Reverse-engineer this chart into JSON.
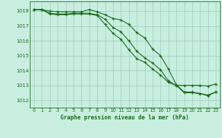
{
  "x": [
    0,
    1,
    2,
    3,
    4,
    5,
    6,
    7,
    8,
    9,
    10,
    11,
    12,
    13,
    14,
    15,
    16,
    17,
    18,
    19,
    20,
    21,
    22,
    23
  ],
  "line1": [
    1018.1,
    1018.1,
    1018.0,
    1017.95,
    1017.95,
    1017.95,
    1017.95,
    1018.1,
    1017.95,
    1017.75,
    1017.5,
    1017.4,
    1017.1,
    1016.55,
    1016.2,
    1015.45,
    1015.0,
    1014.1,
    1013.05,
    1012.55,
    1012.55,
    1012.45,
    1012.35,
    1012.55
  ],
  "line2": [
    1018.1,
    1018.1,
    1017.85,
    1017.8,
    1017.8,
    1017.85,
    1017.85,
    1017.85,
    1017.75,
    1017.45,
    1016.9,
    1016.6,
    1016.0,
    1015.3,
    1014.85,
    1014.5,
    1014.05,
    1013.3,
    1013.0,
    1012.5,
    1012.5,
    1012.45,
    1012.3,
    1012.55
  ],
  "line3": [
    1018.1,
    1018.1,
    1017.8,
    1017.75,
    1017.75,
    1017.8,
    1017.8,
    1017.8,
    1017.7,
    1017.1,
    1016.5,
    1016.1,
    1015.4,
    1014.8,
    1014.55,
    1014.1,
    1013.7,
    1013.2,
    1013.0,
    1013.0,
    1013.0,
    1013.0,
    1012.95,
    1013.1
  ],
  "line_color": "#1a6b1a",
  "bg_color": "#c8eee0",
  "grid_color": "#a0cfc0",
  "xlabel": "Graphe pression niveau de la mer (hPa)",
  "ylim": [
    1011.5,
    1018.65
  ],
  "yticks": [
    1012,
    1013,
    1014,
    1015,
    1016,
    1017,
    1018
  ],
  "xlim": [
    -0.5,
    23.5
  ],
  "xticks": [
    0,
    1,
    2,
    3,
    4,
    5,
    6,
    7,
    8,
    9,
    10,
    11,
    12,
    13,
    14,
    15,
    16,
    17,
    18,
    19,
    20,
    21,
    22,
    23
  ]
}
